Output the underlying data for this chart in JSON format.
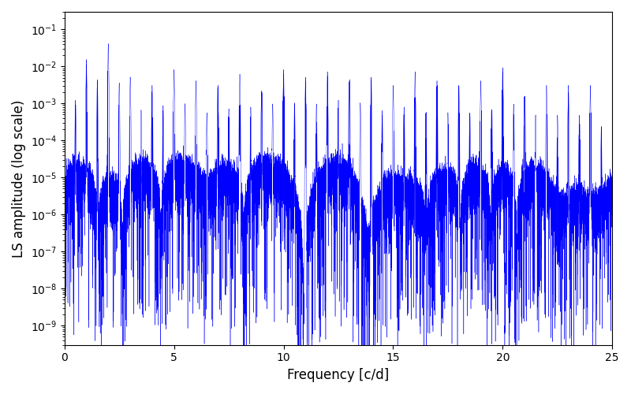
{
  "title": "",
  "xlabel": "Frequency [c/d]",
  "ylabel": "LS amplitude (log scale)",
  "xlim": [
    0,
    25
  ],
  "ylim": [
    3e-10,
    0.3
  ],
  "line_color": "#0000ff",
  "background_color": "#ffffff",
  "figsize": [
    8.0,
    5.0
  ],
  "dpi": 100,
  "freq_max": 25.0,
  "n_points": 20000,
  "seed": 12345,
  "xticks": [
    0,
    5,
    10,
    15,
    20,
    25
  ],
  "linewidth": 0.3
}
